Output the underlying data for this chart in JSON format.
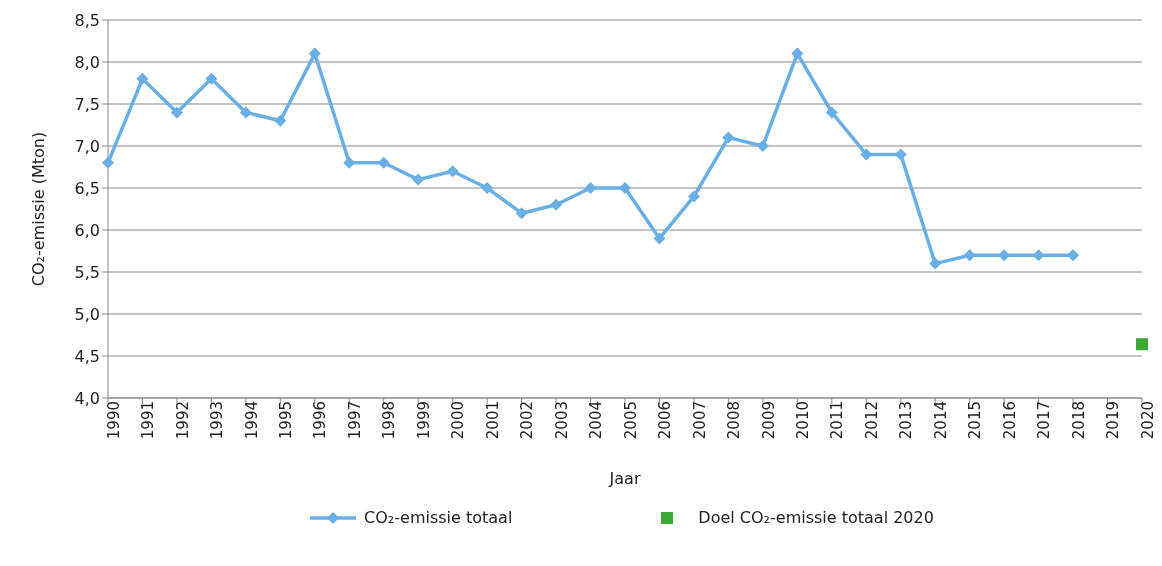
{
  "chart_data": {
    "type": "line",
    "xlabel": "Jaar",
    "ylabel": "CO₂-emissie (Mton)",
    "categories": [
      "1990",
      "1991",
      "1992",
      "1993",
      "1994",
      "1995",
      "1996",
      "1997",
      "1998",
      "1999",
      "2000",
      "2001",
      "2002",
      "2003",
      "2004",
      "2005",
      "2006",
      "2007",
      "2008",
      "2009",
      "2010",
      "2011",
      "2012",
      "2013",
      "2014",
      "2015",
      "2016",
      "2017",
      "2018",
      "2019",
      "2020"
    ],
    "series": [
      {
        "name": "CO₂-emissie totaal",
        "marker": "diamond",
        "color": "#6aaee6",
        "values": [
          6.8,
          7.8,
          7.4,
          7.8,
          7.4,
          7.3,
          8.1,
          6.8,
          6.8,
          6.6,
          6.7,
          6.5,
          6.2,
          6.3,
          6.5,
          6.5,
          5.9,
          6.4,
          7.1,
          7.0,
          8.1,
          7.4,
          6.9,
          6.9,
          5.6,
          5.7,
          5.7,
          5.7,
          5.7,
          null,
          null
        ]
      },
      {
        "name": "Doel CO₂-emissie totaal 2020",
        "type": "scatter",
        "marker": "square",
        "color": "#3aaa35",
        "values": [
          null,
          null,
          null,
          null,
          null,
          null,
          null,
          null,
          null,
          null,
          null,
          null,
          null,
          null,
          null,
          null,
          null,
          null,
          null,
          null,
          null,
          null,
          null,
          null,
          null,
          null,
          null,
          null,
          null,
          null,
          4.64
        ]
      }
    ],
    "ylim": [
      4.0,
      8.5
    ],
    "yticks": [
      {
        "value": 4.0,
        "label": "4,0"
      },
      {
        "value": 4.5,
        "label": "4,5"
      },
      {
        "value": 5.0,
        "label": "5,0"
      },
      {
        "value": 5.5,
        "label": "5,5"
      },
      {
        "value": 6.0,
        "label": "6,0"
      },
      {
        "value": 6.5,
        "label": "6,5"
      },
      {
        "value": 7.0,
        "label": "7,0"
      },
      {
        "value": 7.5,
        "label": "7,5"
      },
      {
        "value": 8.0,
        "label": "8,0"
      },
      {
        "value": 8.5,
        "label": "8,5"
      }
    ],
    "grid": "y",
    "legend": "bottom"
  }
}
